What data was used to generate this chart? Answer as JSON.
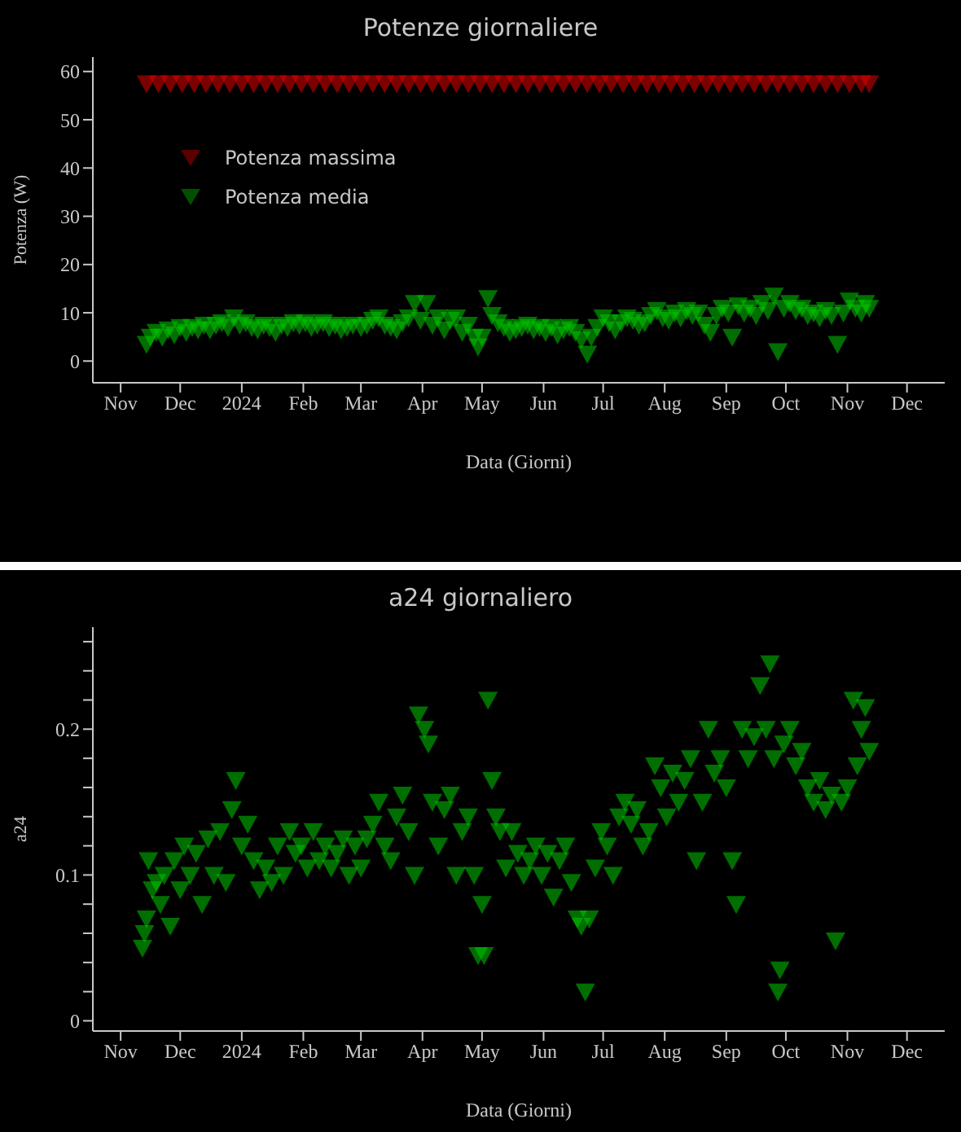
{
  "chart_data": [
    {
      "type": "scatter",
      "title": "Potenze giornaliere",
      "xlabel": "Data (Giorni)",
      "ylabel": "Potenza (W)",
      "xlim": [
        "2023-10-18",
        "2024-12-20"
      ],
      "xticks": [
        {
          "value": "2023-11-01",
          "label": "Nov"
        },
        {
          "value": "2023-12-01",
          "label": "Dec"
        },
        {
          "value": "2024-01-01",
          "label": "2024"
        },
        {
          "value": "2024-02-01",
          "label": "Feb"
        },
        {
          "value": "2024-03-01",
          "label": "Mar"
        },
        {
          "value": "2024-04-01",
          "label": "Apr"
        },
        {
          "value": "2024-05-01",
          "label": "May"
        },
        {
          "value": "2024-06-01",
          "label": "Jun"
        },
        {
          "value": "2024-07-01",
          "label": "Jul"
        },
        {
          "value": "2024-08-01",
          "label": "Aug"
        },
        {
          "value": "2024-09-01",
          "label": "Sep"
        },
        {
          "value": "2024-10-01",
          "label": "Oct"
        },
        {
          "value": "2024-11-01",
          "label": "Nov"
        },
        {
          "value": "2024-12-01",
          "label": "Dec"
        }
      ],
      "ylim": [
        -4.5,
        63
      ],
      "yticks": [
        0,
        10,
        20,
        30,
        40,
        50,
        60
      ],
      "grid": false,
      "legend": "top left",
      "marker": "triangle",
      "series": [
        {
          "name": "Potenza massima",
          "color": "#e00000",
          "x": [
            "2023-11-14",
            "2023-11-20",
            "2023-11-26",
            "2023-12-02",
            "2023-12-08",
            "2023-12-14",
            "2023-12-20",
            "2023-12-26",
            "2024-01-01",
            "2024-01-07",
            "2024-01-13",
            "2024-01-19",
            "2024-01-25",
            "2024-01-31",
            "2024-02-06",
            "2024-02-12",
            "2024-02-18",
            "2024-02-24",
            "2024-03-01",
            "2024-03-07",
            "2024-03-13",
            "2024-03-19",
            "2024-03-25",
            "2024-03-31",
            "2024-04-06",
            "2024-04-12",
            "2024-04-18",
            "2024-04-24",
            "2024-04-30",
            "2024-05-06",
            "2024-05-12",
            "2024-05-18",
            "2024-05-24",
            "2024-05-30",
            "2024-06-05",
            "2024-06-11",
            "2024-06-17",
            "2024-06-23",
            "2024-06-29",
            "2024-07-05",
            "2024-07-11",
            "2024-07-17",
            "2024-07-23",
            "2024-07-29",
            "2024-08-04",
            "2024-08-10",
            "2024-08-16",
            "2024-08-22",
            "2024-08-28",
            "2024-09-03",
            "2024-09-09",
            "2024-09-15",
            "2024-09-21",
            "2024-09-27",
            "2024-10-03",
            "2024-10-09",
            "2024-10-15",
            "2024-10-21",
            "2024-10-27",
            "2024-11-02",
            "2024-11-08",
            "2024-11-12"
          ],
          "values": [
            57.5,
            57.5,
            57.5,
            57.5,
            57.5,
            57.5,
            57.5,
            57.5,
            57.5,
            57.5,
            57.5,
            57.5,
            57.5,
            57.5,
            57.5,
            57.5,
            57.5,
            57.5,
            57.5,
            57.5,
            57.5,
            57.5,
            57.5,
            57.5,
            57.5,
            57.5,
            57.5,
            57.5,
            57.5,
            57.5,
            57.5,
            57.5,
            57.5,
            57.5,
            57.5,
            57.5,
            57.5,
            57.5,
            57.5,
            57.5,
            57.5,
            57.5,
            57.5,
            57.5,
            57.5,
            57.5,
            57.5,
            57.5,
            57.5,
            57.5,
            57.5,
            57.5,
            57.5,
            57.5,
            57.5,
            57.5,
            57.5,
            57.5,
            57.5,
            57.5,
            57.5,
            57.5
          ]
        },
        {
          "name": "Potenza media",
          "color": "#00c800",
          "x": [
            "2023-11-14",
            "2023-11-16",
            "2023-11-19",
            "2023-11-22",
            "2023-11-25",
            "2023-11-28",
            "2023-12-01",
            "2023-12-04",
            "2023-12-07",
            "2023-12-10",
            "2023-12-13",
            "2023-12-16",
            "2023-12-19",
            "2023-12-22",
            "2023-12-25",
            "2023-12-28",
            "2023-12-31",
            "2024-01-03",
            "2024-01-06",
            "2024-01-09",
            "2024-01-12",
            "2024-01-15",
            "2024-01-18",
            "2024-01-21",
            "2024-01-24",
            "2024-01-27",
            "2024-01-30",
            "2024-02-02",
            "2024-02-05",
            "2024-02-08",
            "2024-02-11",
            "2024-02-14",
            "2024-02-17",
            "2024-02-20",
            "2024-02-23",
            "2024-02-26",
            "2024-03-01",
            "2024-03-04",
            "2024-03-07",
            "2024-03-10",
            "2024-03-13",
            "2024-03-16",
            "2024-03-19",
            "2024-03-22",
            "2024-03-25",
            "2024-03-28",
            "2024-03-31",
            "2024-04-03",
            "2024-04-06",
            "2024-04-09",
            "2024-04-12",
            "2024-04-15",
            "2024-04-18",
            "2024-04-21",
            "2024-04-24",
            "2024-04-27",
            "2024-04-29",
            "2024-05-01",
            "2024-05-04",
            "2024-05-06",
            "2024-05-09",
            "2024-05-12",
            "2024-05-15",
            "2024-05-18",
            "2024-05-21",
            "2024-05-24",
            "2024-05-27",
            "2024-05-30",
            "2024-06-02",
            "2024-06-05",
            "2024-06-08",
            "2024-06-11",
            "2024-06-14",
            "2024-06-17",
            "2024-06-20",
            "2024-06-23",
            "2024-06-25",
            "2024-06-28",
            "2024-07-01",
            "2024-07-04",
            "2024-07-07",
            "2024-07-10",
            "2024-07-13",
            "2024-07-16",
            "2024-07-19",
            "2024-07-22",
            "2024-07-25",
            "2024-07-28",
            "2024-07-31",
            "2024-08-03",
            "2024-08-06",
            "2024-08-09",
            "2024-08-12",
            "2024-08-15",
            "2024-08-18",
            "2024-08-21",
            "2024-08-24",
            "2024-08-27",
            "2024-08-30",
            "2024-09-02",
            "2024-09-04",
            "2024-09-07",
            "2024-09-10",
            "2024-09-13",
            "2024-09-16",
            "2024-09-19",
            "2024-09-22",
            "2024-09-25",
            "2024-09-27",
            "2024-09-30",
            "2024-10-03",
            "2024-10-06",
            "2024-10-09",
            "2024-10-12",
            "2024-10-15",
            "2024-10-18",
            "2024-10-21",
            "2024-10-24",
            "2024-10-27",
            "2024-10-30",
            "2024-11-02",
            "2024-11-05",
            "2024-11-08",
            "2024-11-10",
            "2024-11-12"
          ],
          "values": [
            3.5,
            5,
            6,
            5,
            6.5,
            5.5,
            7,
            6,
            7,
            6.5,
            7.5,
            6.5,
            7.5,
            8,
            7,
            9,
            7.5,
            8,
            7,
            6.5,
            7.5,
            7,
            6,
            7.5,
            7,
            8,
            7.5,
            8,
            7,
            7.5,
            8,
            7,
            7.5,
            6.5,
            7,
            7.5,
            7,
            7.5,
            8.5,
            9,
            7.5,
            7,
            6.5,
            8,
            9,
            12,
            8.5,
            12,
            7.5,
            9,
            6.5,
            8.5,
            9,
            6,
            7.5,
            5,
            3,
            5,
            13,
            9.5,
            8,
            7,
            6,
            6.5,
            7,
            7.5,
            6.5,
            7,
            6,
            7,
            5.5,
            6.5,
            7,
            6,
            4.5,
            1.5,
            5,
            7,
            9,
            8,
            6.5,
            8,
            9,
            8.5,
            7.5,
            8,
            9.5,
            10.5,
            9,
            8.5,
            10,
            9,
            10.5,
            9.5,
            10,
            7.5,
            6,
            9.5,
            11,
            10,
            5,
            11.5,
            10,
            11,
            9.5,
            12,
            10.5,
            13.5,
            2,
            11,
            12,
            10.5,
            11,
            9.5,
            10,
            9,
            10.5,
            9.5,
            3.5,
            10,
            12.5,
            11,
            10,
            12,
            11
          ]
        }
      ]
    },
    {
      "type": "scatter",
      "title": "a24 giornaliero",
      "xlabel": "Data (Giorni)",
      "ylabel": "a24",
      "xlim": [
        "2023-10-18",
        "2024-12-20"
      ],
      "xticks": [
        {
          "value": "2023-11-01",
          "label": "Nov"
        },
        {
          "value": "2023-12-01",
          "label": "Dec"
        },
        {
          "value": "2024-01-01",
          "label": "2024"
        },
        {
          "value": "2024-02-01",
          "label": "Feb"
        },
        {
          "value": "2024-03-01",
          "label": "Mar"
        },
        {
          "value": "2024-04-01",
          "label": "Apr"
        },
        {
          "value": "2024-05-01",
          "label": "May"
        },
        {
          "value": "2024-06-01",
          "label": "Jun"
        },
        {
          "value": "2024-07-01",
          "label": "Jul"
        },
        {
          "value": "2024-08-01",
          "label": "Aug"
        },
        {
          "value": "2024-09-01",
          "label": "Sep"
        },
        {
          "value": "2024-10-01",
          "label": "Oct"
        },
        {
          "value": "2024-11-01",
          "label": "Nov"
        },
        {
          "value": "2024-12-01",
          "label": "Dec"
        }
      ],
      "ylim": [
        -0.007,
        0.27
      ],
      "yticks": [
        0,
        {
          "value": 0.02,
          "label": null
        },
        {
          "value": 0.04,
          "label": null
        },
        {
          "value": 0.06,
          "label": null
        },
        {
          "value": 0.08,
          "label": null
        },
        0.1,
        {
          "value": 0.12,
          "label": null
        },
        {
          "value": 0.14,
          "label": null
        },
        {
          "value": 0.16,
          "label": null
        },
        {
          "value": 0.18,
          "label": null
        },
        0.2,
        {
          "value": 0.22,
          "label": null
        },
        {
          "value": 0.24,
          "label": null
        },
        {
          "value": 0.26,
          "label": null
        }
      ],
      "grid": false,
      "marker": "triangle",
      "series": [
        {
          "color": "#00c800",
          "x": [
            "2023-11-12",
            "2023-11-13",
            "2023-11-14",
            "2023-11-15",
            "2023-11-17",
            "2023-11-19",
            "2023-11-21",
            "2023-11-23",
            "2023-11-26",
            "2023-11-28",
            "2023-12-01",
            "2023-12-03",
            "2023-12-06",
            "2023-12-09",
            "2023-12-12",
            "2023-12-15",
            "2023-12-18",
            "2023-12-21",
            "2023-12-24",
            "2023-12-27",
            "2023-12-29",
            "2024-01-01",
            "2024-01-04",
            "2024-01-07",
            "2024-01-10",
            "2024-01-13",
            "2024-01-16",
            "2024-01-19",
            "2024-01-22",
            "2024-01-25",
            "2024-01-28",
            "2024-01-31",
            "2024-02-03",
            "2024-02-06",
            "2024-02-09",
            "2024-02-12",
            "2024-02-15",
            "2024-02-18",
            "2024-02-21",
            "2024-02-24",
            "2024-02-27",
            "2024-03-01",
            "2024-03-04",
            "2024-03-07",
            "2024-03-10",
            "2024-03-13",
            "2024-03-16",
            "2024-03-19",
            "2024-03-22",
            "2024-03-25",
            "2024-03-28",
            "2024-03-30",
            "2024-04-02",
            "2024-04-04",
            "2024-04-06",
            "2024-04-09",
            "2024-04-12",
            "2024-04-15",
            "2024-04-18",
            "2024-04-21",
            "2024-04-24",
            "2024-04-27",
            "2024-04-29",
            "2024-05-01",
            "2024-05-02",
            "2024-05-04",
            "2024-05-06",
            "2024-05-08",
            "2024-05-10",
            "2024-05-13",
            "2024-05-16",
            "2024-05-19",
            "2024-05-22",
            "2024-05-25",
            "2024-05-28",
            "2024-05-31",
            "2024-06-03",
            "2024-06-06",
            "2024-06-09",
            "2024-06-12",
            "2024-06-15",
            "2024-06-18",
            "2024-06-20",
            "2024-06-22",
            "2024-06-24",
            "2024-06-27",
            "2024-06-30",
            "2024-07-03",
            "2024-07-06",
            "2024-07-09",
            "2024-07-12",
            "2024-07-15",
            "2024-07-18",
            "2024-07-21",
            "2024-07-24",
            "2024-07-27",
            "2024-07-30",
            "2024-08-02",
            "2024-08-05",
            "2024-08-08",
            "2024-08-11",
            "2024-08-14",
            "2024-08-17",
            "2024-08-20",
            "2024-08-23",
            "2024-08-26",
            "2024-08-29",
            "2024-09-01",
            "2024-09-04",
            "2024-09-06",
            "2024-09-09",
            "2024-09-12",
            "2024-09-15",
            "2024-09-18",
            "2024-09-21",
            "2024-09-23",
            "2024-09-25",
            "2024-09-27",
            "2024-09-28",
            "2024-09-30",
            "2024-10-03",
            "2024-10-06",
            "2024-10-09",
            "2024-10-12",
            "2024-10-15",
            "2024-10-18",
            "2024-10-21",
            "2024-10-24",
            "2024-10-26",
            "2024-10-29",
            "2024-11-01",
            "2024-11-04",
            "2024-11-06",
            "2024-11-08",
            "2024-11-10",
            "2024-11-12"
          ],
          "values": [
            0.05,
            0.06,
            0.07,
            0.11,
            0.09,
            0.095,
            0.08,
            0.1,
            0.065,
            0.11,
            0.09,
            0.12,
            0.1,
            0.115,
            0.08,
            0.125,
            0.1,
            0.13,
            0.095,
            0.145,
            0.165,
            0.12,
            0.135,
            0.11,
            0.09,
            0.105,
            0.095,
            0.12,
            0.1,
            0.13,
            0.115,
            0.12,
            0.105,
            0.13,
            0.11,
            0.12,
            0.105,
            0.115,
            0.125,
            0.1,
            0.12,
            0.105,
            0.125,
            0.135,
            0.15,
            0.12,
            0.11,
            0.14,
            0.155,
            0.13,
            0.1,
            0.21,
            0.2,
            0.19,
            0.15,
            0.12,
            0.145,
            0.155,
            0.1,
            0.13,
            0.14,
            0.1,
            0.045,
            0.08,
            0.045,
            0.22,
            0.165,
            0.14,
            0.13,
            0.105,
            0.13,
            0.115,
            0.1,
            0.11,
            0.12,
            0.1,
            0.115,
            0.085,
            0.11,
            0.12,
            0.095,
            0.07,
            0.065,
            0.02,
            0.07,
            0.105,
            0.13,
            0.12,
            0.1,
            0.14,
            0.15,
            0.135,
            0.145,
            0.12,
            0.13,
            0.175,
            0.16,
            0.14,
            0.17,
            0.15,
            0.165,
            0.18,
            0.11,
            0.15,
            0.2,
            0.17,
            0.18,
            0.16,
            0.11,
            0.08,
            0.2,
            0.18,
            0.195,
            0.23,
            0.2,
            0.245,
            0.18,
            0.02,
            0.035,
            0.19,
            0.2,
            0.175,
            0.185,
            0.16,
            0.15,
            0.165,
            0.145,
            0.155,
            0.055,
            0.15,
            0.16,
            0.22,
            0.175,
            0.2,
            0.215,
            0.185
          ]
        }
      ]
    }
  ]
}
